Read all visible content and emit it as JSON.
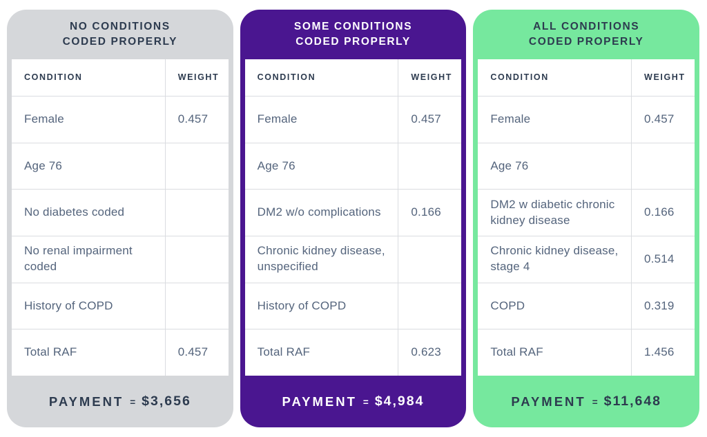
{
  "page_background": "#ffffff",
  "text_colors": {
    "heading": "#2d3b4f",
    "body": "#54647c",
    "divider": "#dadce0"
  },
  "chart_data": [
    {
      "type": "table",
      "title_strong": "NO",
      "title_rest": " CONDITIONS",
      "title_line2": "CODED PROPERLY",
      "columns": {
        "condition": "CONDITION",
        "weight": "WEIGHT"
      },
      "rows": [
        {
          "condition": "Female",
          "weight": "0.457"
        },
        {
          "condition": "Age 76",
          "weight": ""
        },
        {
          "condition": "No diabetes coded",
          "weight": ""
        },
        {
          "condition": "No renal impairment coded",
          "weight": ""
        },
        {
          "condition": "History of COPD",
          "weight": ""
        },
        {
          "condition": "Total RAF",
          "weight": "0.457"
        }
      ],
      "total_raf": "0.457",
      "payment_label": "PAYMENT",
      "payment_equals": "=",
      "payment_amount": "$3,656",
      "colors": {
        "accent_bg": "#d5d7da",
        "accent_text": "#2d3b4f"
      }
    },
    {
      "type": "table",
      "title_strong": "SOME",
      "title_rest": " CONDITIONS",
      "title_line2": "CODED PROPERLY",
      "columns": {
        "condition": "CONDITION",
        "weight": "WEIGHT"
      },
      "rows": [
        {
          "condition": "Female",
          "weight": "0.457"
        },
        {
          "condition": "Age 76",
          "weight": ""
        },
        {
          "condition": "DM2 w/o complications",
          "weight": "0.166"
        },
        {
          "condition": "Chronic kidney disease, unspecified",
          "weight": ""
        },
        {
          "condition": "History of COPD",
          "weight": ""
        },
        {
          "condition": "Total RAF",
          "weight": "0.623"
        }
      ],
      "total_raf": "0.623",
      "payment_label": "PAYMENT",
      "payment_equals": "=",
      "payment_amount": "$4,984",
      "colors": {
        "accent_bg": "#4a1690",
        "accent_text": "#ffffff"
      }
    },
    {
      "type": "table",
      "title_strong": "ALL",
      "title_rest": " CONDITIONS",
      "title_line2": "CODED PROPERLY",
      "columns": {
        "condition": "CONDITION",
        "weight": "WEIGHT"
      },
      "rows": [
        {
          "condition": "Female",
          "weight": "0.457"
        },
        {
          "condition": "Age 76",
          "weight": ""
        },
        {
          "condition": "DM2 w diabetic chronic kidney disease",
          "weight": "0.166"
        },
        {
          "condition": "Chronic kidney disease, stage 4",
          "weight": "0.514"
        },
        {
          "condition": "COPD",
          "weight": "0.319"
        },
        {
          "condition": "Total RAF",
          "weight": "1.456"
        }
      ],
      "total_raf": "1.456",
      "payment_label": "PAYMENT",
      "payment_equals": "=",
      "payment_amount": "$11,648",
      "colors": {
        "accent_bg": "#76e89e",
        "accent_text": "#2d3b4f"
      }
    }
  ]
}
